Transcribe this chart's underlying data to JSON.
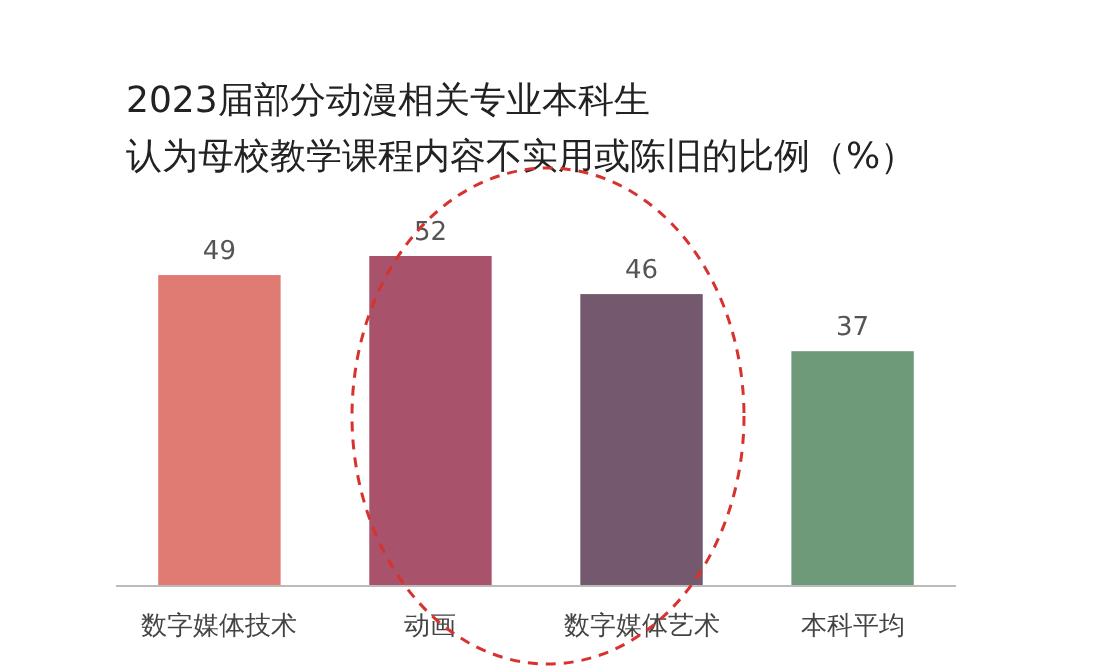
{
  "chart_data": {
    "type": "bar",
    "title": "2023届部分动漫相关专业本科生",
    "subtitle": "认为母校教学课程内容不实用或陈旧的比例（%）",
    "categories": [
      "数字媒体技术",
      "动画",
      "数字媒体艺术",
      "本科平均"
    ],
    "values": [
      49,
      52,
      46,
      37
    ],
    "colors": [
      "#e07b74",
      "#a9526c",
      "#74596e",
      "#6f9a7a"
    ],
    "data_labels": true
  }
}
